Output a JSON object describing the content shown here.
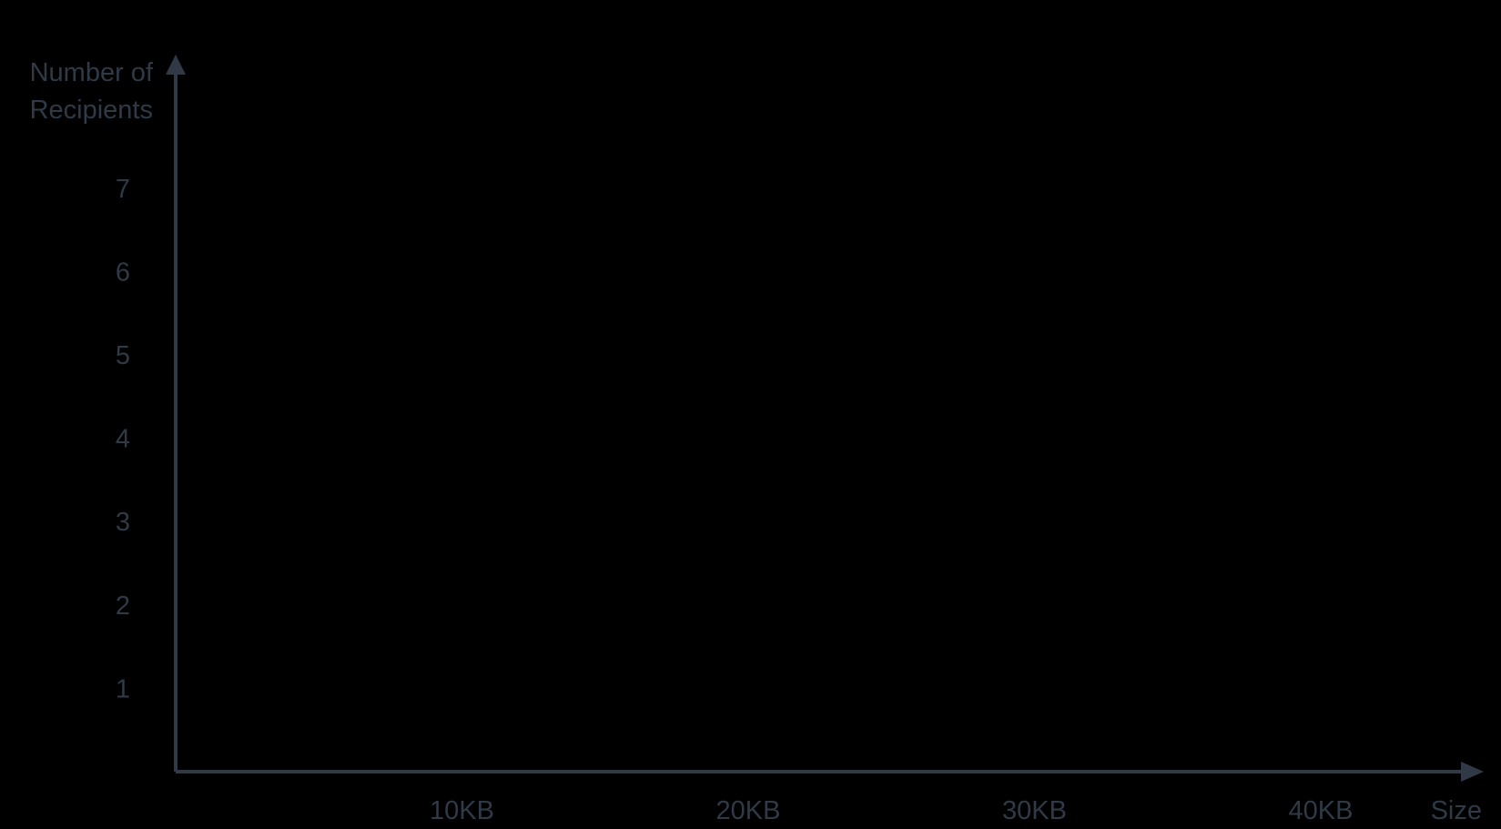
{
  "chart_data": {
    "type": "bar",
    "title": "",
    "xlabel": "Size",
    "ylabel_lines": [
      "Number of",
      "Recipients"
    ],
    "x_ticks": [
      {
        "value": 10,
        "label": "10KB"
      },
      {
        "value": 20,
        "label": "20KB"
      },
      {
        "value": 30,
        "label": "30KB"
      },
      {
        "value": 40,
        "label": "40KB"
      }
    ],
    "y_ticks": [
      {
        "value": 1,
        "label": "1"
      },
      {
        "value": 2,
        "label": "2"
      },
      {
        "value": 3,
        "label": "3"
      },
      {
        "value": 4,
        "label": "4"
      },
      {
        "value": 5,
        "label": "5"
      },
      {
        "value": 6,
        "label": "6"
      },
      {
        "value": 7,
        "label": "7"
      }
    ],
    "xlim": [
      0,
      46
    ],
    "ylim": [
      0,
      7
    ],
    "series": [],
    "grid": false,
    "legend": "none"
  },
  "colors": {
    "background": "#000000",
    "axis": "#2f3a46",
    "text": "#2f3a46"
  }
}
